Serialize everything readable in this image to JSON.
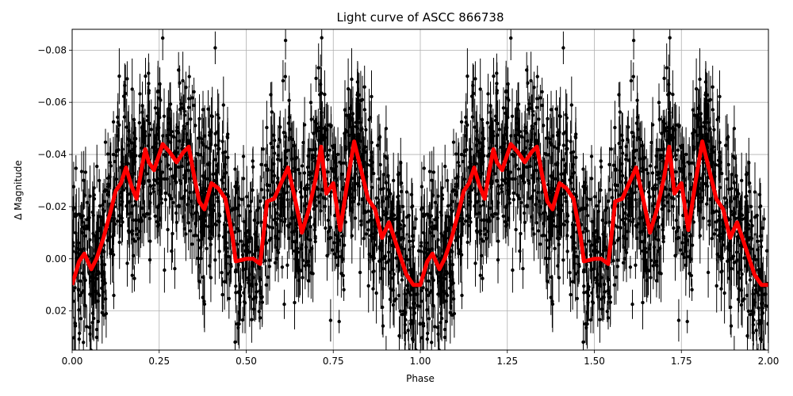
{
  "chart_data": {
    "type": "scatter",
    "title": "Light curve of ASCC 866738",
    "xlabel": "Phase",
    "ylabel": "Δ Magnitude",
    "xlim": [
      0.0,
      2.0
    ],
    "ylim": [
      0.035,
      -0.088
    ],
    "y_inverted": true,
    "grid": true,
    "legend": null,
    "xticks": [
      "0.00",
      "0.25",
      "0.50",
      "0.75",
      "1.00",
      "1.25",
      "1.50",
      "1.75",
      "2.00"
    ],
    "xtick_values": [
      0.0,
      0.25,
      0.5,
      0.75,
      1.0,
      1.25,
      1.5,
      1.75,
      2.0
    ],
    "yticks": [
      "−0.08",
      "−0.06",
      "−0.04",
      "−0.02",
      "0.00",
      "0.02"
    ],
    "ytick_values": [
      -0.08,
      -0.06,
      -0.04,
      -0.02,
      0.0,
      0.02
    ],
    "series": [
      {
        "name": "observations",
        "kind": "errorbar-scatter",
        "color": "#000000",
        "description": "Dense black points with vertical error bars, phase-folded and repeated over two periods; scatter roughly ±0.03 mag around the binned curve"
      },
      {
        "name": "binned light curve",
        "kind": "line",
        "color": "#ff0000",
        "period_repeats": 2,
        "phase": [
          0.0,
          0.02,
          0.035,
          0.055,
          0.07,
          0.09,
          0.11,
          0.125,
          0.14,
          0.155,
          0.17,
          0.185,
          0.2,
          0.21,
          0.22,
          0.235,
          0.26,
          0.28,
          0.3,
          0.32,
          0.335,
          0.35,
          0.365,
          0.38,
          0.4,
          0.42,
          0.44,
          0.46,
          0.47,
          0.5,
          0.52,
          0.54,
          0.56,
          0.58,
          0.62,
          0.64,
          0.66,
          0.68,
          0.7,
          0.715,
          0.73,
          0.75,
          0.77,
          0.79,
          0.81,
          0.83,
          0.85,
          0.87,
          0.89,
          0.91,
          0.93,
          0.96,
          0.98,
          1.0
        ],
        "magnitude": [
          0.01,
          0.001,
          -0.002,
          0.004,
          0.0,
          -0.008,
          -0.018,
          -0.026,
          -0.029,
          -0.035,
          -0.028,
          -0.023,
          -0.035,
          -0.042,
          -0.037,
          -0.034,
          -0.044,
          -0.041,
          -0.037,
          -0.041,
          -0.043,
          -0.032,
          -0.022,
          -0.019,
          -0.029,
          -0.027,
          -0.023,
          -0.009,
          0.001,
          0.0,
          0.0,
          0.002,
          -0.022,
          -0.023,
          -0.035,
          -0.023,
          -0.01,
          -0.019,
          -0.031,
          -0.043,
          -0.025,
          -0.029,
          -0.011,
          -0.029,
          -0.045,
          -0.034,
          -0.023,
          -0.019,
          -0.008,
          -0.014,
          -0.006,
          0.006,
          0.01,
          0.01
        ]
      }
    ]
  }
}
